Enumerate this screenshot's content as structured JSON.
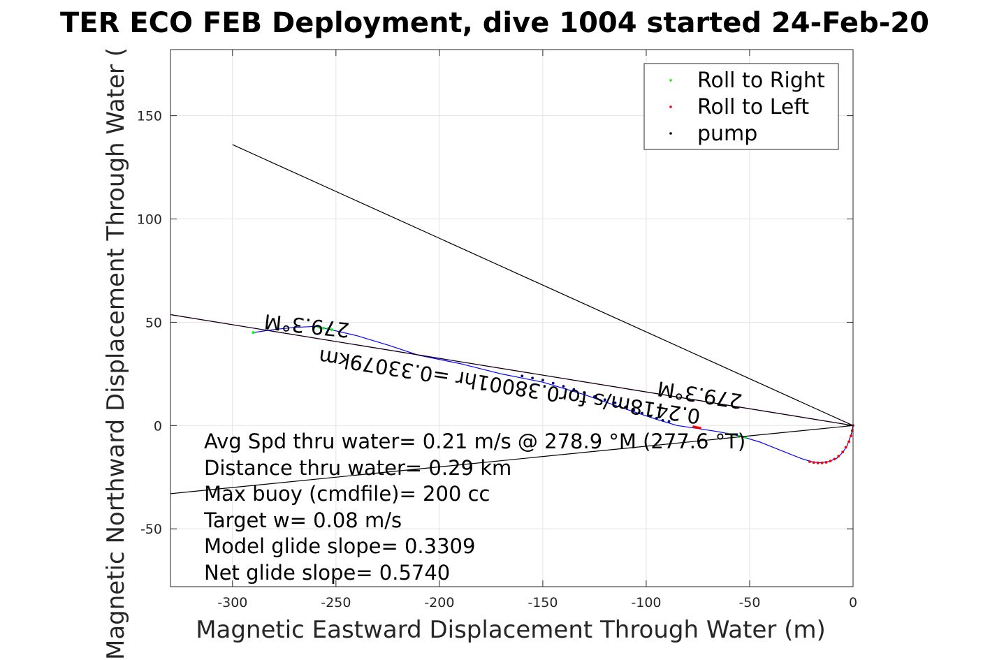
{
  "chart_data": {
    "type": "scatter",
    "title": "TER ECO FEB Deployment, dive 1004 started 24-Feb-20",
    "xlabel": "Magnetic Eastward Displacement Through Water (m)",
    "ylabel": "Magnetic Northward Displacement Through Water (",
    "xlim": [
      -330,
      0
    ],
    "ylim": [
      -78,
      182
    ],
    "xticks": [
      -300,
      -250,
      -200,
      -150,
      -100,
      -50,
      0
    ],
    "yticks": [
      -50,
      0,
      50,
      100,
      150
    ],
    "grid": true,
    "legend_position": "top-right",
    "legend": [
      {
        "label": "Roll to Right",
        "color": "#00ff00"
      },
      {
        "label": "Roll to Left",
        "color": "#ff0000"
      },
      {
        "label": "pump",
        "color": "#000000"
      }
    ],
    "series": [
      {
        "style": "line",
        "color": "#0000ff",
        "x": [
          -290,
          -280,
          -270,
          -260,
          -255,
          -240,
          -225,
          -210,
          -190,
          -170,
          -150,
          -130,
          -110,
          -95,
          -85,
          -78,
          -65,
          -55,
          -45,
          -35,
          -25,
          -20,
          -16,
          -12,
          -8,
          -5,
          -3,
          -1.5,
          -0.5,
          0
        ],
        "y": [
          45,
          46.5,
          47.5,
          48,
          47,
          43.5,
          39,
          34,
          30,
          25,
          21,
          15,
          8,
          3,
          0,
          -1,
          -3,
          -5,
          -8,
          -12,
          -16,
          -17.5,
          -18,
          -17.5,
          -16,
          -13,
          -10,
          -6,
          -3,
          0
        ]
      },
      {
        "style": "markers",
        "color": "#00ff00",
        "x": [
          -290,
          -258,
          -256,
          -254,
          -252,
          -61,
          -58,
          -55,
          -52
        ],
        "y": [
          45,
          47.5,
          47.2,
          46.8,
          46.4,
          -4,
          -4.6,
          -5.2,
          -5.8
        ]
      },
      {
        "style": "markers",
        "color": "#ff0000",
        "x": [
          -77,
          -76,
          -75,
          -74,
          -21,
          -19,
          -17,
          -15,
          -13,
          -11,
          -9,
          -7,
          -5,
          -3.5,
          -2,
          -1,
          -0.4,
          0
        ],
        "y": [
          -0.6,
          -0.8,
          -1.0,
          -1.2,
          -17.5,
          -17.9,
          -18.1,
          -18.1,
          -17.8,
          -17.2,
          -16.2,
          -14.8,
          -12.8,
          -10.5,
          -7.8,
          -5,
          -2.5,
          0
        ]
      },
      {
        "style": "markers",
        "color": "#000080",
        "x": [
          -160,
          -155,
          -150,
          -145,
          -140,
          -135,
          -130,
          -125,
          -120,
          -115,
          -110,
          -106,
          -102,
          -98,
          -95,
          -92,
          -89
        ],
        "y": [
          24,
          23,
          22,
          20.5,
          19,
          17.5,
          16,
          14,
          12.5,
          11,
          9,
          7.5,
          6,
          4.5,
          3.5,
          2.5,
          2
        ]
      },
      {
        "style": "line",
        "color": "#ff00ff",
        "x": [
          -330,
          0
        ],
        "y": [
          53.7,
          0
        ]
      },
      {
        "style": "line",
        "color": "#000000",
        "x": [
          -330,
          0
        ],
        "y": [
          53.7,
          0
        ]
      },
      {
        "style": "line",
        "color": "#000000",
        "x": [
          -300,
          0
        ],
        "y": [
          136,
          0
        ]
      },
      {
        "style": "line",
        "color": "#000000",
        "x": [
          -330,
          0
        ],
        "y": [
          -33,
          0
        ]
      }
    ],
    "annotations": [
      {
        "text": "279.3°M",
        "x": -264,
        "y": 49,
        "rotation": 186
      },
      {
        "text": "279.3°M",
        "x": -74,
        "y": 15.5,
        "rotation": 189
      },
      {
        "text": "0.2418m/s for0.38001hr =0.33079km",
        "x": -166,
        "y": 19.5,
        "rotation": 189
      }
    ]
  },
  "notes": [
    "Avg Spd thru water=  0.21 m/s @ 278.9 °M (277.6 °T)",
    "Distance thru water=  0.29 km",
    "Max buoy (cmdfile)= 200 cc",
    "Target w= 0.08 m/s",
    "Model glide slope= 0.3309",
    "Net glide slope= 0.5740"
  ]
}
